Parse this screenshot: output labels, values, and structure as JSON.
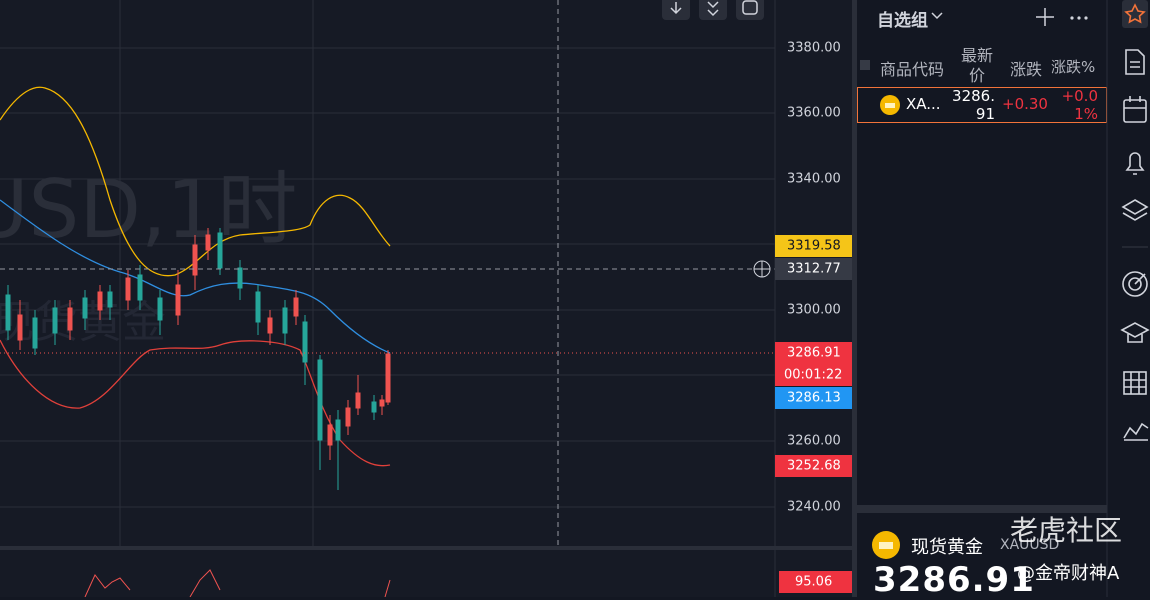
{
  "chart_watermark": {
    "symbol": "USD,1时",
    "name": "现货黄金"
  },
  "price_axis": {
    "labels": [
      "3380.00",
      "3360.00",
      "3340.00",
      "3300.00",
      "3260.00",
      "3240.00"
    ]
  },
  "price_tags": {
    "upper_band": "3319.58",
    "crosshair": "3312.77",
    "last": "3286.91",
    "countdown": "00:01:22",
    "middle_band": "3286.13",
    "lower_band": "3252.68",
    "indicator": "95.06"
  },
  "watchlist": {
    "title": "自选组",
    "columns": [
      "商品代码",
      "最新价",
      "涨跌",
      "涨跌%"
    ],
    "rows": [
      {
        "symbol": "XA...",
        "last": "3286.91",
        "change": "+0.30",
        "change_pct": "+0.01%"
      }
    ]
  },
  "quote_panel": {
    "name": "现货黄金",
    "symbol": "XAUUSD",
    "price": "3286.91"
  },
  "overlay": {
    "brand": "老虎社区",
    "author": "@金帝财神A"
  }
}
